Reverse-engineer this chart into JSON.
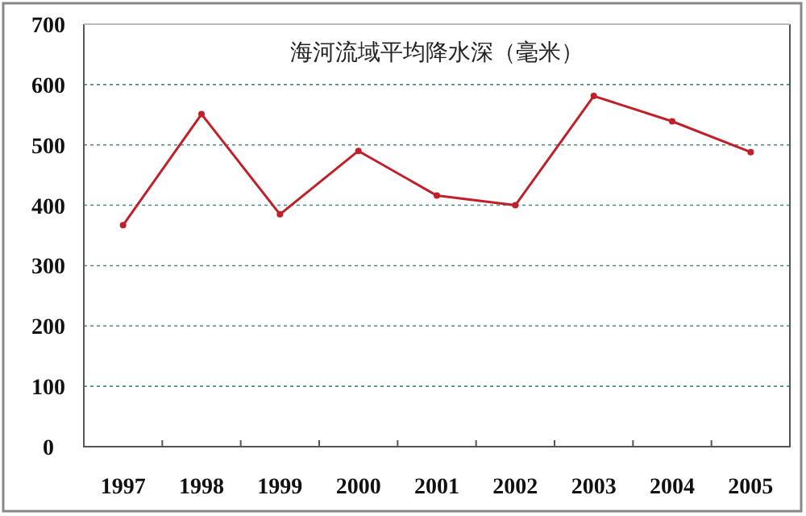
{
  "chart_data": {
    "type": "line",
    "title": "海河流域平均降水深（毫米）",
    "categories": [
      "1997",
      "1998",
      "1999",
      "2000",
      "2001",
      "2002",
      "2003",
      "2004",
      "2005"
    ],
    "series": [
      {
        "color": "#c0202a",
        "values": [
          367,
          551,
          385,
          490,
          416,
          400,
          581,
          539,
          488
        ]
      }
    ],
    "ylim": [
      0,
      700
    ],
    "yticks": [
      0,
      100,
      200,
      300,
      400,
      500,
      600,
      700
    ],
    "grid": "y",
    "marker": "circle",
    "line_style": "solid"
  }
}
